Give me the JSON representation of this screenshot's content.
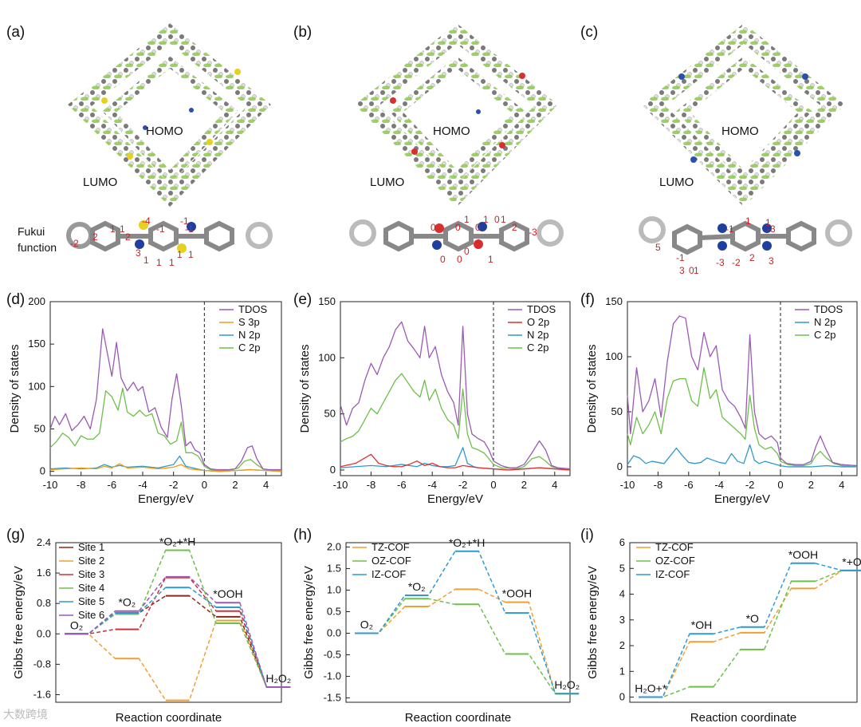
{
  "panels": {
    "a": "(a)",
    "b": "(b)",
    "c": "(c)",
    "d": "(d)",
    "e": "(e)",
    "f": "(f)",
    "g": "(g)",
    "h": "(h)",
    "i": "(i)"
  },
  "structure_labels": {
    "homo": "HOMO",
    "lumo": "LUMO",
    "fukui_line1": "Fukui",
    "fukui_line2": "function"
  },
  "fukui_values": {
    "a": [
      "-2",
      "2",
      "1",
      "1",
      "2",
      "-4",
      "-1",
      "-1",
      "3",
      "1",
      "1",
      "1",
      "1",
      "1",
      "-1"
    ],
    "b": [
      "0",
      "0",
      "1",
      "0",
      "1",
      "2",
      "0",
      "0",
      "0",
      "1",
      "0",
      "1",
      "2",
      "-3"
    ],
    "c": [
      "5",
      "-1",
      "3",
      "0",
      "1",
      "-1",
      "1",
      "-3",
      "-3",
      "-2",
      "2",
      "3",
      "1"
    ]
  },
  "watermark": "大数跨境",
  "colors": {
    "tdos": "#9b59b6",
    "s3p": "#f39c12",
    "o2p": "#e03030",
    "n2p": "#2e9ad0",
    "c2p": "#6cc04a",
    "tz": "#f0a030",
    "oz": "#6cc04a",
    "iz": "#2e9ad0"
  },
  "chart_data": [
    {
      "id": "d",
      "type": "line",
      "xlabel": "Energy/eV",
      "ylabel": "Density of states",
      "xlim": [
        -10,
        5
      ],
      "ylim": [
        -5,
        200
      ],
      "xticks": [
        -10,
        -8,
        -6,
        -4,
        -2,
        0,
        2,
        4
      ],
      "yticks": [
        0,
        50,
        100,
        150,
        200
      ],
      "fermi": 0,
      "legend": [
        "TDOS",
        "S 3p",
        "N 2p",
        "C 2p"
      ],
      "series": [
        {
          "name": "TDOS",
          "x": [
            -10,
            -9.7,
            -9.4,
            -9,
            -8.6,
            -8.2,
            -7.8,
            -7.4,
            -7,
            -6.6,
            -6.3,
            -6,
            -5.7,
            -5.4,
            -5,
            -4.6,
            -4.3,
            -4,
            -3.6,
            -3.2,
            -2.8,
            -2.4,
            -2.1,
            -1.8,
            -1.5,
            -1.2,
            -0.9,
            -0.6,
            -0.3,
            0,
            0.4,
            0.8,
            1.2,
            1.6,
            2,
            2.4,
            2.8,
            3.1,
            3.4,
            3.8,
            4.2,
            5
          ],
          "y": [
            50,
            65,
            55,
            68,
            48,
            55,
            65,
            50,
            85,
            168,
            140,
            112,
            152,
            110,
            95,
            105,
            95,
            100,
            70,
            75,
            52,
            40,
            85,
            115,
            78,
            30,
            35,
            25,
            22,
            8,
            3,
            2,
            2,
            2,
            3,
            12,
            28,
            30,
            15,
            3,
            2,
            2
          ]
        },
        {
          "name": "S 3p",
          "x": [
            -10,
            -9,
            -8,
            -7,
            -6.5,
            -6,
            -5.5,
            -5,
            -4,
            -3,
            -2.5,
            -2,
            -1.5,
            -1,
            -0.5,
            0,
            1,
            2,
            3,
            4,
            5
          ],
          "y": [
            2,
            3,
            4,
            3,
            6,
            4,
            9,
            4,
            5,
            3,
            4,
            5,
            8,
            3,
            2,
            1,
            0,
            1,
            2,
            1,
            0
          ]
        },
        {
          "name": "N 2p",
          "x": [
            -10,
            -9,
            -8,
            -7,
            -6.5,
            -6,
            -5.5,
            -5,
            -4,
            -3,
            -2.5,
            -2,
            -1.6,
            -1.2,
            -0.5,
            0,
            1,
            2,
            3,
            4,
            5
          ],
          "y": [
            3,
            4,
            3,
            4,
            8,
            5,
            7,
            5,
            6,
            4,
            6,
            8,
            18,
            6,
            3,
            1,
            0,
            1,
            2,
            1,
            0
          ]
        },
        {
          "name": "C 2p",
          "x": [
            -10,
            -9.6,
            -9.2,
            -8.8,
            -8.4,
            -8,
            -7.6,
            -7.2,
            -6.8,
            -6.4,
            -6,
            -5.6,
            -5.3,
            -5,
            -4.6,
            -4.2,
            -3.8,
            -3.4,
            -3,
            -2.6,
            -2.2,
            -1.8,
            -1.5,
            -1.2,
            -0.8,
            -0.4,
            0,
            0.4,
            1,
            1.6,
            2.2,
            2.6,
            3,
            3.4,
            3.8,
            4.4,
            5
          ],
          "y": [
            28,
            35,
            45,
            40,
            30,
            42,
            38,
            38,
            45,
            95,
            88,
            72,
            98,
            70,
            65,
            72,
            65,
            68,
            45,
            42,
            32,
            36,
            58,
            22,
            22,
            18,
            6,
            2,
            1,
            1,
            4,
            12,
            14,
            8,
            3,
            1,
            1
          ]
        }
      ]
    },
    {
      "id": "e",
      "type": "line",
      "xlabel": "Energy/eV",
      "ylabel": "Density of states",
      "xlim": [
        -10,
        5
      ],
      "ylim": [
        -5,
        150
      ],
      "xticks": [
        -10,
        -8,
        -6,
        -4,
        -2,
        0,
        2,
        4
      ],
      "yticks": [
        0,
        50,
        100,
        150
      ],
      "fermi": 0,
      "legend": [
        "TDOS",
        "O 2p",
        "N 2p",
        "C 2p"
      ],
      "series": [
        {
          "name": "TDOS",
          "x": [
            -10,
            -9.6,
            -9.2,
            -8.8,
            -8.4,
            -8,
            -7.6,
            -7.2,
            -6.8,
            -6.4,
            -6,
            -5.6,
            -5.2,
            -4.8,
            -4.5,
            -4.2,
            -3.8,
            -3.4,
            -3,
            -2.6,
            -2.3,
            -2,
            -1.7,
            -1.4,
            -1,
            -0.6,
            -0.3,
            0,
            0.5,
            1,
            1.5,
            2,
            2.5,
            3,
            3.4,
            3.8,
            4.2,
            5
          ],
          "y": [
            58,
            40,
            55,
            60,
            80,
            95,
            85,
            100,
            110,
            125,
            132,
            115,
            108,
            100,
            128,
            100,
            110,
            85,
            70,
            60,
            40,
            128,
            50,
            32,
            28,
            25,
            18,
            8,
            4,
            2,
            2,
            5,
            15,
            26,
            18,
            4,
            2,
            1
          ]
        },
        {
          "name": "O 2p",
          "x": [
            -10,
            -9,
            -8.5,
            -8,
            -7.5,
            -7,
            -6.5,
            -6,
            -5.5,
            -5,
            -4.5,
            -4,
            -3.5,
            -3,
            -2.5,
            -2,
            -1.5,
            -1,
            0,
            1,
            2,
            3,
            4,
            5
          ],
          "y": [
            3,
            6,
            10,
            14,
            6,
            4,
            3,
            3,
            5,
            8,
            4,
            6,
            3,
            2,
            2,
            4,
            3,
            2,
            1,
            0,
            1,
            2,
            1,
            0
          ]
        },
        {
          "name": "N 2p",
          "x": [
            -10,
            -9,
            -8,
            -7,
            -6,
            -5.5,
            -5,
            -4.5,
            -4,
            -3.5,
            -3,
            -2.5,
            -2,
            -1.7,
            -1.3,
            -1,
            0,
            1,
            2,
            3,
            4,
            5
          ],
          "y": [
            2,
            3,
            4,
            3,
            5,
            4,
            3,
            6,
            4,
            3,
            3,
            4,
            20,
            6,
            3,
            2,
            1,
            0,
            1,
            2,
            1,
            0
          ]
        },
        {
          "name": "C 2p",
          "x": [
            -10,
            -9.6,
            -9.2,
            -8.8,
            -8.4,
            -8,
            -7.6,
            -7.2,
            -6.8,
            -6.4,
            -6,
            -5.6,
            -5.2,
            -4.8,
            -4.5,
            -4.2,
            -3.8,
            -3.4,
            -3,
            -2.6,
            -2.3,
            -2,
            -1.7,
            -1.4,
            -1,
            -0.6,
            0,
            0.5,
            1.5,
            2,
            2.5,
            3,
            3.4,
            3.8,
            4.4,
            5
          ],
          "y": [
            25,
            28,
            30,
            35,
            45,
            55,
            50,
            60,
            70,
            80,
            86,
            78,
            70,
            65,
            80,
            62,
            72,
            55,
            45,
            40,
            28,
            72,
            32,
            20,
            18,
            15,
            5,
            2,
            1,
            3,
            10,
            12,
            8,
            3,
            1,
            0
          ]
        }
      ]
    },
    {
      "id": "f",
      "type": "line",
      "xlabel": "Energy/eV",
      "ylabel": "Density of states",
      "xlim": [
        -10,
        5
      ],
      "ylim": [
        -8,
        150
      ],
      "xticks": [
        -10,
        -8,
        -6,
        -4,
        -2,
        0,
        2,
        4
      ],
      "yticks": [
        0,
        50,
        100,
        150
      ],
      "fermi": 0,
      "legend": [
        "TDOS",
        "N 2p",
        "C 2p"
      ],
      "series": [
        {
          "name": "TDOS",
          "x": [
            -10,
            -9.8,
            -9.4,
            -9,
            -8.6,
            -8.2,
            -7.8,
            -7.4,
            -7,
            -6.6,
            -6.2,
            -5.8,
            -5.4,
            -5,
            -4.6,
            -4.2,
            -3.8,
            -3.4,
            -3,
            -2.6,
            -2.3,
            -2,
            -1.7,
            -1.4,
            -1,
            -0.6,
            -0.2,
            0,
            0.4,
            1,
            1.5,
            2,
            2.3,
            2.6,
            3,
            3.4,
            4,
            5
          ],
          "y": [
            65,
            30,
            90,
            50,
            60,
            80,
            45,
            95,
            130,
            137,
            135,
            100,
            88,
            122,
            100,
            110,
            70,
            60,
            55,
            45,
            35,
            120,
            50,
            30,
            25,
            28,
            22,
            8,
            3,
            2,
            2,
            5,
            18,
            28,
            15,
            4,
            2,
            1
          ]
        },
        {
          "name": "N 2p",
          "x": [
            -10,
            -9.6,
            -9.2,
            -8.8,
            -8.4,
            -8,
            -7.6,
            -7.2,
            -6.8,
            -6.4,
            -6,
            -5.6,
            -5.2,
            -4.8,
            -4.4,
            -4,
            -3.6,
            -3.2,
            -2.8,
            -2.4,
            -2,
            -1.7,
            -1.4,
            -1,
            -0.5,
            0,
            0.5,
            1,
            2,
            3,
            4,
            5
          ],
          "y": [
            2,
            10,
            8,
            3,
            5,
            4,
            3,
            10,
            17,
            10,
            4,
            3,
            4,
            8,
            6,
            4,
            3,
            12,
            5,
            3,
            20,
            6,
            3,
            5,
            3,
            1,
            0,
            0,
            0,
            1,
            0,
            0
          ]
        },
        {
          "name": "C 2p",
          "x": [
            -10,
            -9.8,
            -9.4,
            -9,
            -8.6,
            -8.2,
            -7.8,
            -7.4,
            -7,
            -6.6,
            -6.2,
            -5.8,
            -5.4,
            -5,
            -4.6,
            -4.2,
            -3.8,
            -3.4,
            -3,
            -2.6,
            -2.3,
            -2,
            -1.7,
            -1.4,
            -1,
            -0.6,
            -0.2,
            0,
            0.5,
            1,
            1.5,
            2,
            2.3,
            2.6,
            3,
            3.5,
            4,
            5
          ],
          "y": [
            30,
            20,
            45,
            30,
            38,
            50,
            30,
            62,
            78,
            80,
            80,
            60,
            55,
            90,
            62,
            70,
            45,
            40,
            35,
            30,
            25,
            65,
            35,
            20,
            16,
            18,
            12,
            5,
            2,
            1,
            1,
            3,
            10,
            14,
            8,
            3,
            1,
            0
          ]
        }
      ]
    },
    {
      "id": "g",
      "type": "line",
      "xlabel": "Reaction coordinate",
      "ylabel": "Gibbs free energy/eV",
      "xlim": [
        0,
        7.6
      ],
      "ylim": [
        -1.8,
        2.4
      ],
      "yticks": [
        -1.6,
        -0.8,
        0.0,
        0.8,
        1.6,
        2.4
      ],
      "legend": [
        "Site 1",
        "Site 2",
        "Site 3",
        "Site 4",
        "Site 5",
        "Site 6"
      ],
      "state_labels": [
        "O₂",
        "*O₂",
        "*O₂+*H",
        "*OOH",
        "H₂O₂"
      ],
      "series": [
        {
          "name": "Site 1",
          "color": "#8b2a1a",
          "levels": [
            0,
            0.55,
            1.0,
            0.45,
            -1.4
          ]
        },
        {
          "name": "Site 2",
          "color": "#f0a030",
          "levels": [
            0,
            -0.65,
            -1.75,
            0.35,
            -1.4
          ]
        },
        {
          "name": "Site 3",
          "color": "#d0303a",
          "levels": [
            0,
            0.12,
            1.48,
            0.6,
            -1.4
          ]
        },
        {
          "name": "Site 4",
          "color": "#6cc04a",
          "levels": [
            0,
            0.52,
            2.2,
            0.28,
            -1.4
          ]
        },
        {
          "name": "Site 5",
          "color": "#2e9ad0",
          "levels": [
            0,
            0.55,
            1.22,
            0.7,
            -1.4
          ]
        },
        {
          "name": "Site 6",
          "color": "#9b59b6",
          "levels": [
            0,
            0.6,
            1.5,
            0.82,
            -1.4
          ]
        }
      ]
    },
    {
      "id": "h",
      "type": "line",
      "xlabel": "Reaction coordinate",
      "ylabel": "Gibbs free energy/eV",
      "xlim": [
        0,
        7.6
      ],
      "ylim": [
        -1.6,
        2.1
      ],
      "yticks": [
        -1.5,
        -1.0,
        -0.5,
        0.0,
        0.5,
        1.0,
        1.5,
        2.0
      ],
      "legend": [
        "TZ-COF",
        "OZ-COF",
        "IZ-COF"
      ],
      "state_labels": [
        "O₂",
        "*O₂",
        "*O₂+*H",
        "*OOH",
        "H₂O₂"
      ],
      "series": [
        {
          "name": "TZ-COF",
          "color": "#f0a030",
          "levels": [
            0,
            0.62,
            1.02,
            0.72,
            -1.4
          ]
        },
        {
          "name": "OZ-COF",
          "color": "#6cc04a",
          "levels": [
            0,
            0.8,
            0.67,
            -0.48,
            -1.4
          ]
        },
        {
          "name": "IZ-COF",
          "color": "#2e9ad0",
          "levels": [
            0,
            0.88,
            1.9,
            0.47,
            -1.4
          ]
        }
      ]
    },
    {
      "id": "i",
      "type": "line",
      "xlabel": "Reaction coordinate",
      "ylabel": "Gibbs free energy/eV",
      "xlim": [
        0,
        7.6
      ],
      "ylim": [
        -0.2,
        6
      ],
      "yticks": [
        0,
        1,
        2,
        3,
        4,
        5,
        6
      ],
      "legend": [
        "TZ-COF",
        "OZ-COF",
        "IZ-COF"
      ],
      "state_labels": [
        "H₂O+*",
        "*OH",
        "*O",
        "*OOH",
        "*+O₂"
      ],
      "series": [
        {
          "name": "TZ-COF",
          "color": "#f0a030",
          "levels": [
            0,
            2.15,
            2.5,
            4.22,
            4.92
          ]
        },
        {
          "name": "OZ-COF",
          "color": "#6cc04a",
          "levels": [
            0,
            0.4,
            1.85,
            4.5,
            4.92
          ]
        },
        {
          "name": "IZ-COF",
          "color": "#2e9ad0",
          "levels": [
            0,
            2.46,
            2.72,
            5.2,
            4.92
          ]
        }
      ]
    }
  ]
}
